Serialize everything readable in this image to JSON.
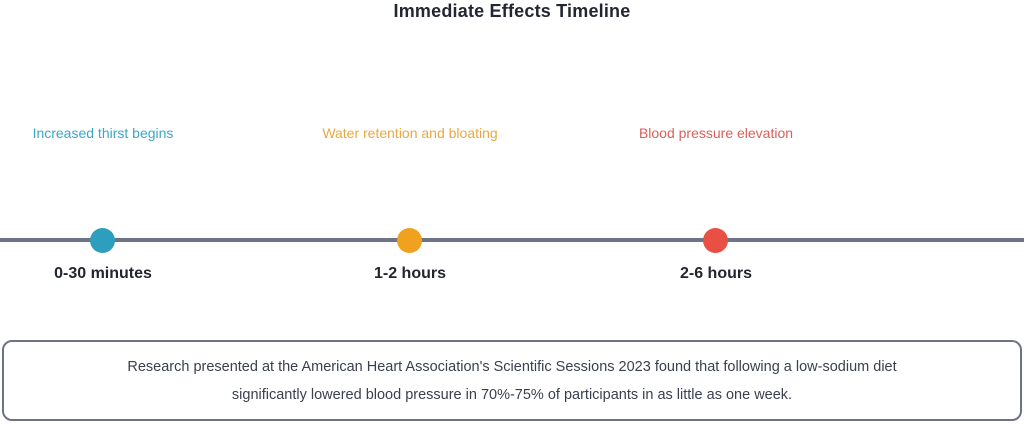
{
  "title": "Immediate Effects Timeline",
  "colors": {
    "title_text": "#232733",
    "timeline_line": "#6e7487",
    "time_label_text": "#21252f",
    "footnote_border": "#6f7189",
    "footnote_text": "#39404e"
  },
  "timeline": {
    "milestones": [
      {
        "time": "0-30 minutes",
        "label": "Increased thirst begins",
        "dot_color": "#2d9ebe",
        "label_color": "#3da6c3"
      },
      {
        "time": "1-2 hours",
        "label": "Water retention and bloating",
        "dot_color": "#f0a11e",
        "label_color": "#eaa843"
      },
      {
        "time": "2-6 hours",
        "label": "Blood pressure elevation",
        "dot_color": "#e85043",
        "label_color": "#d8605b"
      }
    ]
  },
  "footnote": {
    "line1": "Research presented at the American Heart Association's Scientific Sessions 2023 found that following a low-sodium diet",
    "line2": "significantly lowered blood pressure in 70%-75% of participants in as little as one week."
  }
}
